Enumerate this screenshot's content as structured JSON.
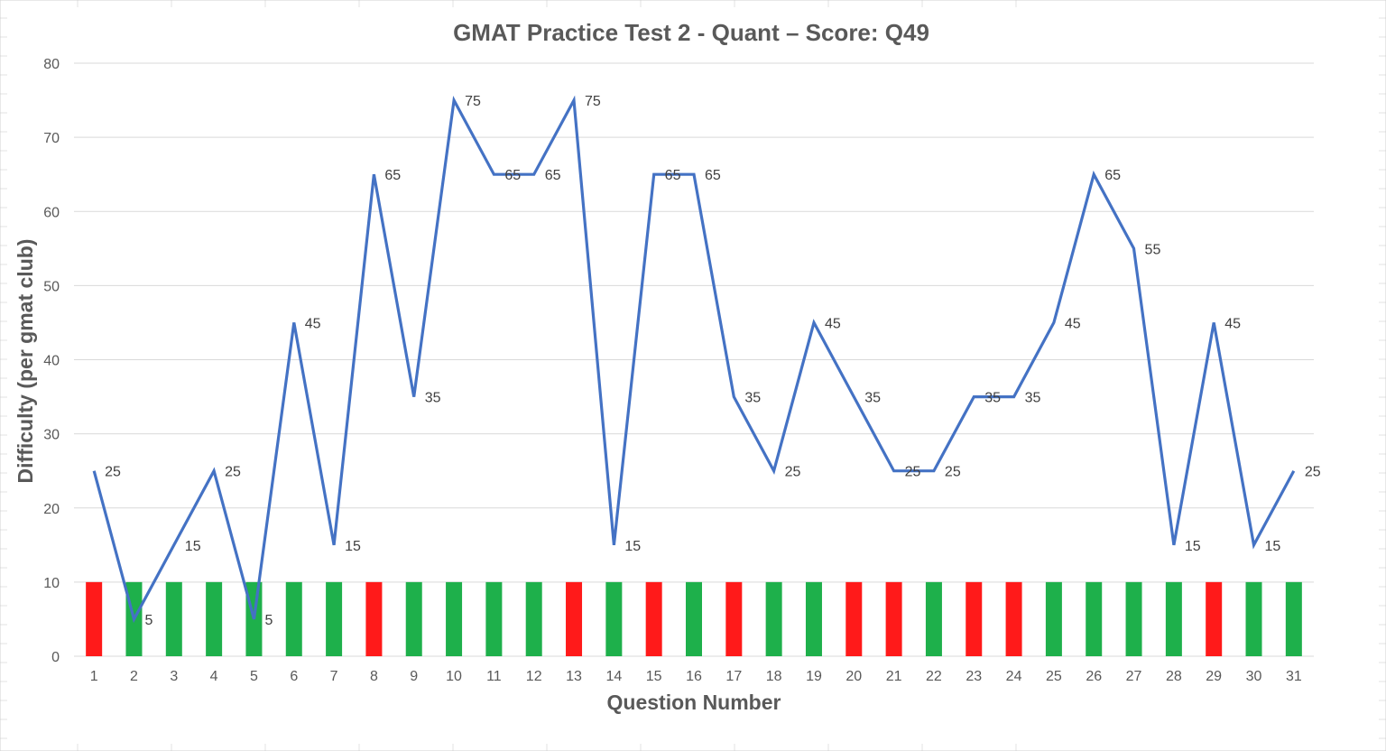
{
  "chart_data": {
    "type": "line",
    "title": "GMAT Practice Test 2 - Quant – Score: Q49",
    "xlabel": "Question Number",
    "ylabel": "Difficulty (per gmat club)",
    "ylim": [
      0,
      80
    ],
    "yticks": [
      0,
      10,
      20,
      30,
      40,
      50,
      60,
      70,
      80
    ],
    "grid": true,
    "legend": "none",
    "categories": [
      "1",
      "2",
      "3",
      "4",
      "5",
      "6",
      "7",
      "8",
      "9",
      "10",
      "11",
      "12",
      "13",
      "14",
      "15",
      "16",
      "17",
      "18",
      "19",
      "20",
      "21",
      "22",
      "23",
      "24",
      "25",
      "26",
      "27",
      "28",
      "29",
      "30",
      "31"
    ],
    "series": [
      {
        "kind": "line",
        "color": "#4472C4",
        "values": [
          25,
          5,
          15,
          25,
          5,
          45,
          15,
          65,
          35,
          75,
          65,
          65,
          75,
          15,
          65,
          65,
          35,
          25,
          45,
          35,
          25,
          25,
          35,
          35,
          45,
          65,
          55,
          15,
          45,
          15,
          25
        ]
      },
      {
        "kind": "bar",
        "values": [
          10,
          10,
          10,
          10,
          10,
          10,
          10,
          10,
          10,
          10,
          10,
          10,
          10,
          10,
          10,
          10,
          10,
          10,
          10,
          10,
          10,
          10,
          10,
          10,
          10,
          10,
          10,
          10,
          10,
          10,
          10
        ],
        "result": [
          "incorrect",
          "correct",
          "correct",
          "correct",
          "correct",
          "correct",
          "correct",
          "incorrect",
          "correct",
          "correct",
          "correct",
          "correct",
          "incorrect",
          "correct",
          "incorrect",
          "correct",
          "incorrect",
          "correct",
          "correct",
          "incorrect",
          "incorrect",
          "correct",
          "incorrect",
          "incorrect",
          "correct",
          "correct",
          "correct",
          "correct",
          "incorrect",
          "correct",
          "correct"
        ]
      }
    ],
    "colors": {
      "correct": "#1EB04B",
      "incorrect": "#FF1A1A",
      "line": "#4472C4"
    }
  }
}
